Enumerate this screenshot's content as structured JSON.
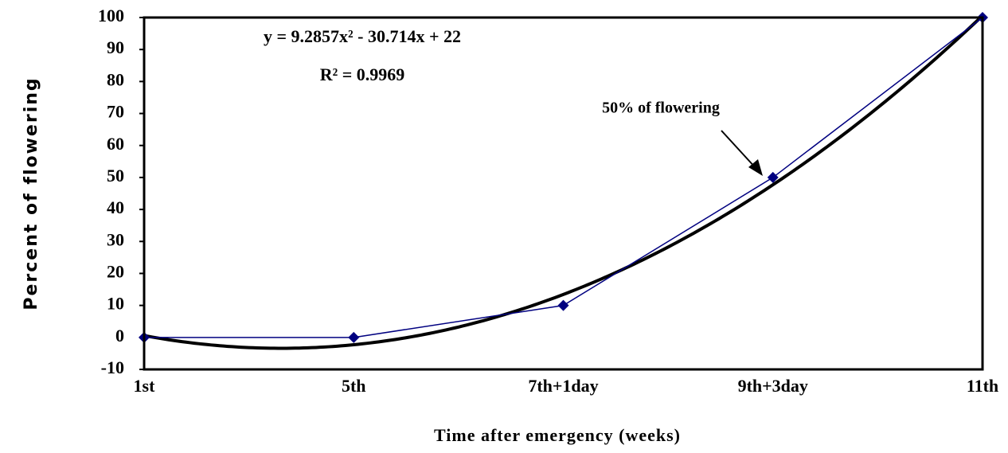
{
  "chart_data": {
    "type": "line",
    "x_label": "Time after emergency (weeks)",
    "y_label": "Percent of flowering",
    "categories": [
      "1st",
      "5th",
      "7th+1day",
      "9th+3day",
      "11th"
    ],
    "series": [
      {
        "name": "Percent of flowering",
        "color": "#000080",
        "values": [
          0,
          0,
          10,
          50,
          100
        ]
      }
    ],
    "trendline": {
      "type": "polynomial",
      "coefficients": [
        9.2857,
        -30.714,
        22
      ],
      "color": "#000000",
      "equation": "y = 9.2857x² - 30.714x + 22",
      "r_squared": "R² = 0.9969"
    },
    "annotation": "50% of flowering",
    "ylim": [
      -10,
      100
    ],
    "yticks": [
      -10,
      0,
      10,
      20,
      30,
      40,
      50,
      60,
      70,
      80,
      90,
      100
    ],
    "grid": false,
    "legend": false
  }
}
